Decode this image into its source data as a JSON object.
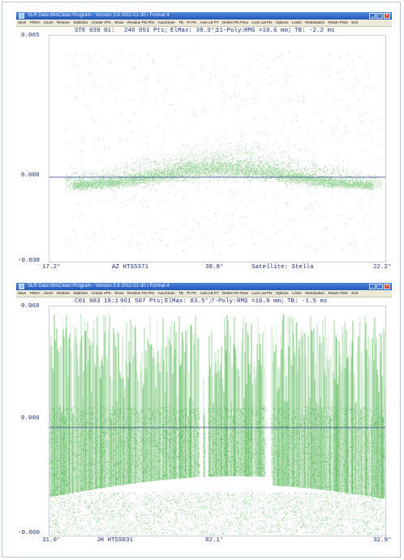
{
  "menu_items": [
    "Save",
    "PNGA",
    "Zoom",
    "Restore",
    "Statistics",
    "Create VPS",
    "Show",
    "Residue Pts Plot",
    "AutoClean",
    "TB",
    "Pt PS",
    "Auto LB PT",
    "Delete Pts Pass",
    "Lons Lat Pts",
    "Options",
    "Limits",
    "Residuation",
    "Retain Plots",
    "Exit"
  ],
  "windows": [
    {
      "title": "SLR Data WinClean Program  -  Version 3.8 2011-01-30 / Format 4",
      "info": {
        "id": "STE 039 01:",
        "points": "246 051 Pts;",
        "elmax": "ElMax: 39.3°;",
        "poly": "11-Poly:",
        "rms": "RMS =10.6 mm;",
        "tb": "TB:  -2.2 ms"
      },
      "y_top": "0.065",
      "y_mid": "0.000",
      "y_bottom": "-0.038",
      "x_left": "17.2°",
      "x_station": "AZ HTS5371",
      "x_mid": "38.8°",
      "x_satellite": "Satellite: Stella",
      "x_right": "22.2°"
    },
    {
      "title": "SLR Data WinClean Program  -  Version 3.8 2011-01-30 / Format 4",
      "info": {
        "id": "C01 083 18:1",
        "points": "961 507 Pts;",
        "elmax": "ElMax: 83.5°;",
        "poly": "7-Poly:",
        "rms": "RMS =16.9 mm;",
        "tb": "TB:  -1.5 ms"
      },
      "y_top": "0.060",
      "y_mid": "0.000",
      "y_bottom": "-0.060",
      "x_left": "31.0°",
      "x_station": "JH HTS5831",
      "x_mid": "82.1°",
      "x_right": "32.9°"
    }
  ],
  "colors": {
    "points": "#22a022",
    "zero_line": "#2b3f8a",
    "labels": "#1f2f7a",
    "titlebar": "#2f64c4"
  },
  "window_icons": [
    "minimize-icon",
    "maximize-icon",
    "close-icon"
  ]
}
